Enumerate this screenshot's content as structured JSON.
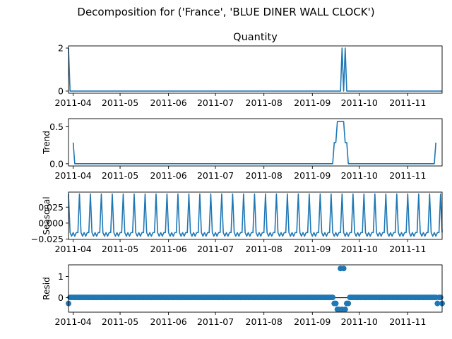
{
  "figure": {
    "suptitle": "Decomposition for ('France', 'BLUE DINER WALL CLOCK')"
  },
  "chart_data": [
    {
      "type": "line",
      "title": "Quantity",
      "ylabel": "",
      "x_start": "2011-03-29",
      "x_end": "2011-11-23",
      "xlim": [
        "2011-03-29",
        "2011-11-23"
      ],
      "ylim": [
        -0.1,
        2.1
      ],
      "yticks": [
        0,
        2
      ],
      "yticklabels": [
        "0",
        "2"
      ],
      "xticks": [
        "2011-04-01",
        "2011-05-01",
        "2011-06-01",
        "2011-07-01",
        "2011-08-01",
        "2011-09-01",
        "2011-10-01",
        "2011-11-01"
      ],
      "xticklabels": [
        "2011-04",
        "2011-05",
        "2011-06",
        "2011-07",
        "2011-08",
        "2011-09",
        "2011-10",
        "2011-11"
      ],
      "grid": false,
      "color": "#1f77b4",
      "values": [
        2,
        0,
        0,
        0,
        0,
        0,
        0,
        0,
        0,
        0,
        0,
        0,
        0,
        0,
        0,
        0,
        0,
        0,
        0,
        0,
        0,
        0,
        0,
        0,
        0,
        0,
        0,
        0,
        0,
        0,
        0,
        0,
        0,
        0,
        0,
        0,
        0,
        0,
        0,
        0,
        0,
        0,
        0,
        0,
        0,
        0,
        0,
        0,
        0,
        0,
        0,
        0,
        0,
        0,
        0,
        0,
        0,
        0,
        0,
        0,
        0,
        0,
        0,
        0,
        0,
        0,
        0,
        0,
        0,
        0,
        0,
        0,
        0,
        0,
        0,
        0,
        0,
        0,
        0,
        0,
        0,
        0,
        0,
        0,
        0,
        0,
        0,
        0,
        0,
        0,
        0,
        0,
        0,
        0,
        0,
        0,
        0,
        0,
        0,
        0,
        0,
        0,
        0,
        0,
        0,
        0,
        0,
        0,
        0,
        0,
        0,
        0,
        0,
        0,
        0,
        0,
        0,
        0,
        0,
        0,
        0,
        0,
        0,
        0,
        0,
        0,
        0,
        0,
        0,
        0,
        0,
        0,
        0,
        0,
        0,
        0,
        0,
        0,
        0,
        0,
        0,
        0,
        0,
        0,
        0,
        0,
        0,
        0,
        0,
        0,
        0,
        0,
        0,
        0,
        0,
        0,
        0,
        0,
        0,
        0,
        0,
        0,
        0,
        0,
        0,
        0,
        0,
        0,
        0,
        0,
        0,
        0,
        0,
        0,
        0,
        2,
        0,
        2,
        0,
        0,
        0,
        0,
        0,
        0,
        0,
        0,
        0,
        0,
        0,
        0,
        0,
        0,
        0,
        0,
        0,
        0,
        0,
        0,
        0,
        0,
        0,
        0,
        0,
        0,
        0,
        0,
        0,
        0,
        0,
        0,
        0,
        0,
        0,
        0,
        0,
        0,
        0,
        0,
        0,
        0,
        0,
        0,
        0,
        0,
        0,
        0,
        0,
        0,
        0,
        0,
        0,
        0,
        0,
        0,
        0,
        0,
        0,
        0,
        0,
        0,
        2
      ]
    },
    {
      "type": "line",
      "title": "",
      "ylabel": "Trend",
      "x_start": "2011-03-29",
      "x_end": "2011-11-23",
      "xlim": [
        "2011-03-29",
        "2011-11-23"
      ],
      "ylim": [
        -0.03,
        0.61
      ],
      "yticks": [
        0,
        0.5
      ],
      "yticklabels": [
        "0.0",
        "0.5"
      ],
      "xticks": [
        "2011-04-01",
        "2011-05-01",
        "2011-06-01",
        "2011-07-01",
        "2011-08-01",
        "2011-09-01",
        "2011-10-01",
        "2011-11-01"
      ],
      "xticklabels": [
        "2011-04",
        "2011-05",
        "2011-06",
        "2011-07",
        "2011-08",
        "2011-09",
        "2011-10",
        "2011-11"
      ],
      "grid": false,
      "color": "#1f77b4",
      "values": [
        null,
        null,
        null,
        0.286,
        0,
        0,
        0,
        0,
        0,
        0,
        0,
        0,
        0,
        0,
        0,
        0,
        0,
        0,
        0,
        0,
        0,
        0,
        0,
        0,
        0,
        0,
        0,
        0,
        0,
        0,
        0,
        0,
        0,
        0,
        0,
        0,
        0,
        0,
        0,
        0,
        0,
        0,
        0,
        0,
        0,
        0,
        0,
        0,
        0,
        0,
        0,
        0,
        0,
        0,
        0,
        0,
        0,
        0,
        0,
        0,
        0,
        0,
        0,
        0,
        0,
        0,
        0,
        0,
        0,
        0,
        0,
        0,
        0,
        0,
        0,
        0,
        0,
        0,
        0,
        0,
        0,
        0,
        0,
        0,
        0,
        0,
        0,
        0,
        0,
        0,
        0,
        0,
        0,
        0,
        0,
        0,
        0,
        0,
        0,
        0,
        0,
        0,
        0,
        0,
        0,
        0,
        0,
        0,
        0,
        0,
        0,
        0,
        0,
        0,
        0,
        0,
        0,
        0,
        0,
        0,
        0,
        0,
        0,
        0,
        0,
        0,
        0,
        0,
        0,
        0,
        0,
        0,
        0,
        0,
        0,
        0,
        0,
        0,
        0,
        0,
        0,
        0,
        0,
        0,
        0,
        0,
        0,
        0,
        0,
        0,
        0,
        0,
        0,
        0,
        0,
        0,
        0,
        0,
        0,
        0,
        0,
        0,
        0,
        0,
        0,
        0,
        0,
        0,
        0,
        0,
        0.286,
        0.286,
        0.571,
        0.571,
        0.571,
        0.571,
        0.571,
        0.286,
        0.286,
        0,
        0,
        0,
        0,
        0,
        0,
        0,
        0,
        0,
        0,
        0,
        0,
        0,
        0,
        0,
        0,
        0,
        0,
        0,
        0,
        0,
        0,
        0,
        0,
        0,
        0,
        0,
        0,
        0,
        0,
        0,
        0,
        0,
        0,
        0,
        0,
        0,
        0,
        0,
        0,
        0,
        0,
        0,
        0,
        0,
        0,
        0,
        0,
        0,
        0,
        0,
        0,
        0,
        0,
        0,
        0,
        0.286,
        null,
        null,
        null
      ]
    },
    {
      "type": "line",
      "title": "",
      "ylabel": "Seasonal",
      "x_start": "2011-03-29",
      "x_end": "2011-11-23",
      "xlim": [
        "2011-03-29",
        "2011-11-23"
      ],
      "ylim": [
        -0.0255,
        0.0485
      ],
      "yticks": [
        -0.025,
        0,
        0.025
      ],
      "yticklabels": [
        "−0.025",
        "0.000",
        "0.025"
      ],
      "xticks": [
        "2011-04-01",
        "2011-05-01",
        "2011-06-01",
        "2011-07-01",
        "2011-08-01",
        "2011-09-01",
        "2011-10-01",
        "2011-11-01"
      ],
      "xticklabels": [
        "2011-04",
        "2011-05",
        "2011-06",
        "2011-07",
        "2011-08",
        "2011-09",
        "2011-10",
        "2011-11"
      ],
      "grid": false,
      "color": "#1f77b4",
      "period": 7,
      "pattern": [
        0.0456,
        -0.0148,
        -0.0204,
        -0.0148,
        -0.0204,
        -0.0148,
        -0.0148
      ]
    },
    {
      "type": "scatter",
      "title": "",
      "ylabel": "Resid",
      "x_start": "2011-03-29",
      "x_end": "2011-11-23",
      "xlim": [
        "2011-03-29",
        "2011-11-23"
      ],
      "ylim": [
        -0.68,
        1.55
      ],
      "yticks": [
        0,
        1
      ],
      "yticklabels": [
        "0",
        "1"
      ],
      "xticks": [
        "2011-04-01",
        "2011-05-01",
        "2011-06-01",
        "2011-07-01",
        "2011-08-01",
        "2011-09-01",
        "2011-10-01",
        "2011-11-01"
      ],
      "xticklabels": [
        "2011-04",
        "2011-05",
        "2011-06",
        "2011-07",
        "2011-08",
        "2011-09",
        "2011-10",
        "2011-11"
      ],
      "grid": false,
      "color": "#1f77b4",
      "baseline": 0,
      "resid_base": 0.016,
      "overrides": [
        {
          "date": "2011-03-29",
          "value": -0.27
        },
        {
          "date": "2011-09-15",
          "value": -0.27
        },
        {
          "date": "2011-09-16",
          "value": -0.27
        },
        {
          "date": "2011-09-17",
          "value": -0.55
        },
        {
          "date": "2011-09-18",
          "value": -0.55
        },
        {
          "date": "2011-09-19",
          "value": 1.38
        },
        {
          "date": "2011-09-20",
          "value": -0.55
        },
        {
          "date": "2011-09-21",
          "value": 1.38
        },
        {
          "date": "2011-09-22",
          "value": -0.55
        },
        {
          "date": "2011-09-23",
          "value": -0.27
        },
        {
          "date": "2011-09-24",
          "value": -0.27
        },
        {
          "date": "2011-11-20",
          "value": -0.27
        },
        {
          "date": "2011-11-23",
          "value": -0.27
        }
      ]
    }
  ]
}
